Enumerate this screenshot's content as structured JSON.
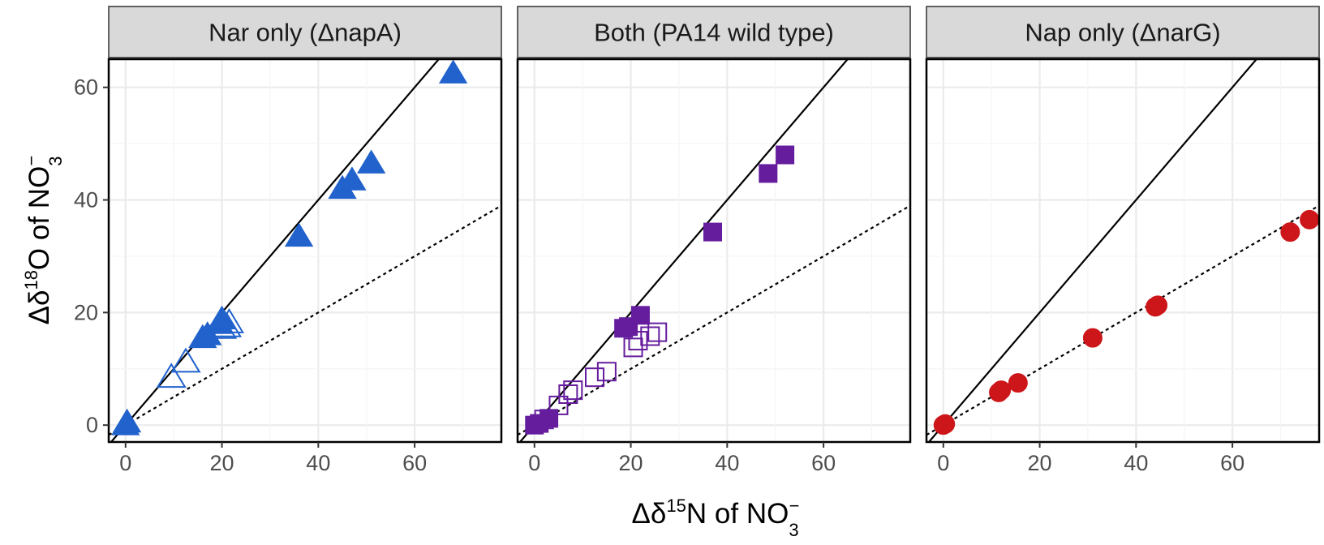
{
  "chart_data": {
    "type": "scatter",
    "xlabel": {
      "prefix": "Δδ",
      "sup": "15",
      "main": "N of NO",
      "sub": "3",
      "charge": "−"
    },
    "ylabel": {
      "prefix": "Δδ",
      "sup": "18",
      "main": "O of NO",
      "sub": "3",
      "charge": "−"
    },
    "xlim": [
      -3.5,
      78
    ],
    "ylim": [
      -3,
      65
    ],
    "x_ticks": [
      "0",
      "20",
      "40",
      "60"
    ],
    "y_ticks": [
      "0",
      "20",
      "40",
      "60"
    ],
    "grid": true,
    "reference_lines": [
      {
        "style": "solid",
        "slope": 1.0,
        "intercept": 0
      },
      {
        "style": "dotted",
        "slope": 0.5,
        "intercept": 0
      }
    ],
    "panels": [
      {
        "title": "Nar only (ΔnapA)",
        "marker": "triangle",
        "color": "#2162cc",
        "filled": [
          [
            0,
            0
          ],
          [
            0.3,
            0.5
          ],
          [
            16,
            15.5
          ],
          [
            17,
            16
          ],
          [
            19.5,
            18
          ],
          [
            20,
            18.8
          ],
          [
            36,
            33.5
          ],
          [
            45,
            42
          ],
          [
            47,
            43.5
          ],
          [
            51,
            46.5
          ],
          [
            68,
            62.5
          ]
        ],
        "open": [
          [
            9.5,
            8.5
          ],
          [
            12.5,
            11.2
          ],
          [
            20,
            17.2
          ],
          [
            21,
            17.5
          ],
          [
            21.5,
            18.2
          ]
        ]
      },
      {
        "title": "Both (PA14 wild type)",
        "marker": "square",
        "color": "#651d9e",
        "filled": [
          [
            0,
            0
          ],
          [
            1,
            0.3
          ],
          [
            3,
            1.2
          ],
          [
            18.5,
            17.2
          ],
          [
            19.5,
            17.5
          ],
          [
            22,
            19.5
          ],
          [
            37,
            34.3
          ],
          [
            48.5,
            44.7
          ],
          [
            52,
            48
          ]
        ],
        "open": [
          [
            2,
            1
          ],
          [
            5,
            3.5
          ],
          [
            7,
            5.5
          ],
          [
            8,
            6.2
          ],
          [
            12.5,
            8.5
          ],
          [
            15,
            9.5
          ],
          [
            20.5,
            13.8
          ],
          [
            21.5,
            15
          ],
          [
            24,
            15.8
          ],
          [
            25.5,
            16.5
          ]
        ]
      },
      {
        "title": "Nap only (ΔnarG)",
        "marker": "circle",
        "color": "#cc1619",
        "filled": [
          [
            0,
            0
          ],
          [
            0.4,
            0.2
          ],
          [
            11.5,
            5.8
          ],
          [
            12,
            6.2
          ],
          [
            15.5,
            7.5
          ],
          [
            31,
            15.5
          ],
          [
            44,
            21
          ],
          [
            44.5,
            21.3
          ],
          [
            72,
            34.3
          ],
          [
            76,
            36.5
          ]
        ],
        "open": []
      }
    ]
  }
}
